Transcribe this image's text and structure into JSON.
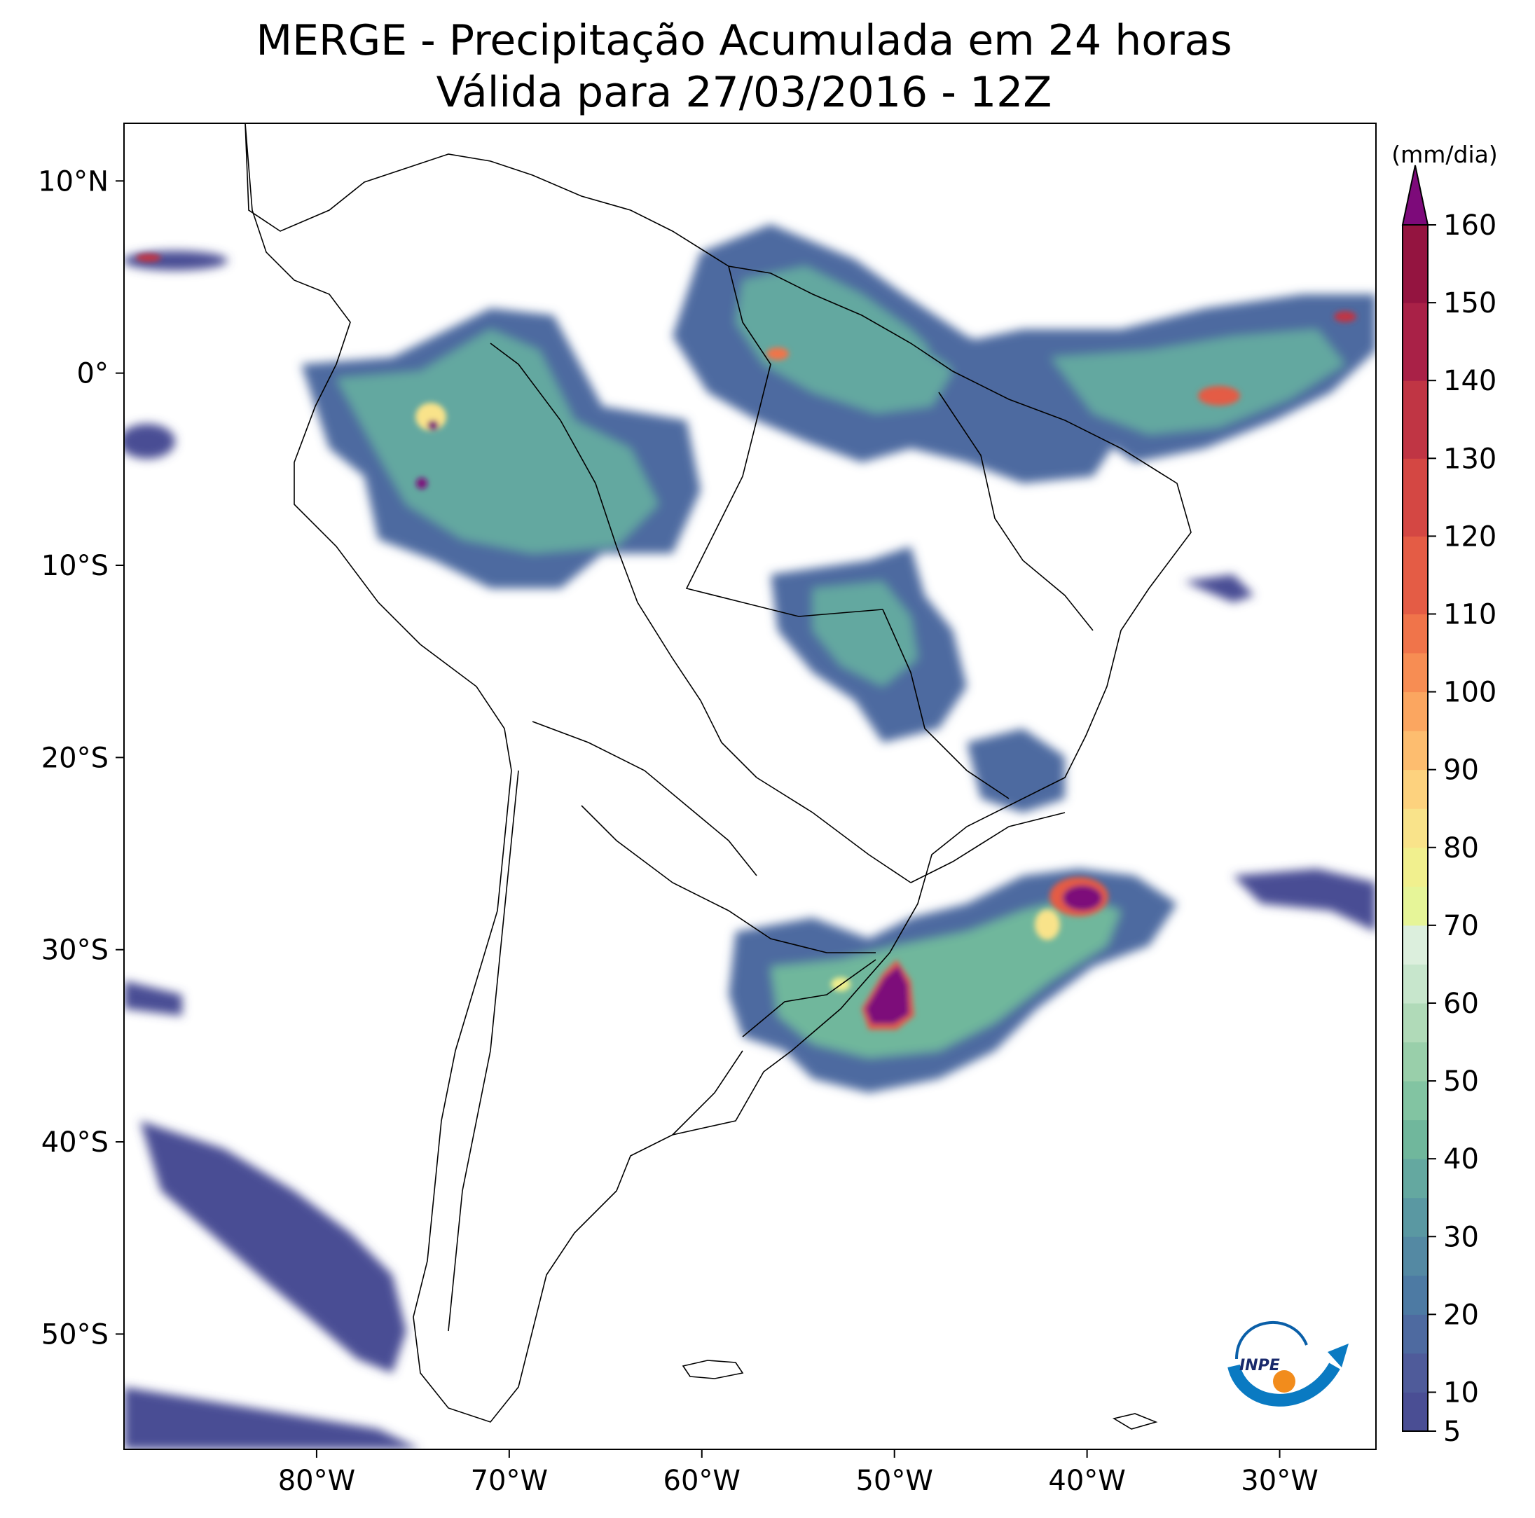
{
  "title": {
    "line1": "MERGE - Precipitação Acumulada em 24 horas",
    "line2": "Válida para 27/03/2016 - 12Z"
  },
  "map": {
    "lon_range": [
      -90,
      -25
    ],
    "lat_range": [
      -56,
      13
    ],
    "lon_ticks": [
      {
        "value": -80,
        "label": "80°W"
      },
      {
        "value": -70,
        "label": "70°W"
      },
      {
        "value": -60,
        "label": "60°W"
      },
      {
        "value": -50,
        "label": "50°W"
      },
      {
        "value": -40,
        "label": "40°W"
      },
      {
        "value": -30,
        "label": "30°W"
      }
    ],
    "lat_ticks": [
      {
        "value": 10,
        "label": "10°N"
      },
      {
        "value": 0,
        "label": "0°"
      },
      {
        "value": -10,
        "label": "10°S"
      },
      {
        "value": -20,
        "label": "20°S"
      },
      {
        "value": -30,
        "label": "30°S"
      },
      {
        "value": -40,
        "label": "40°S"
      },
      {
        "value": -50,
        "label": "50°S"
      }
    ]
  },
  "colorbar": {
    "unit": "(mm/dia)",
    "levels": [
      5,
      160
    ],
    "tick_labels": [
      "5",
      "10",
      "20",
      "30",
      "40",
      "50",
      "60",
      "70",
      "80",
      "90",
      "100",
      "110",
      "120",
      "130",
      "140",
      "150",
      "160"
    ],
    "tick_values": [
      5,
      10,
      20,
      30,
      40,
      50,
      60,
      70,
      80,
      90,
      100,
      110,
      120,
      130,
      140,
      150,
      160
    ],
    "colors": [
      "#4a4e94",
      "#4f5b9a",
      "#4e6aa0",
      "#4d7aa3",
      "#5489a3",
      "#5a98a2",
      "#64a8a0",
      "#70b79c",
      "#82c4a2",
      "#99cfaa",
      "#b0dab8",
      "#c7e6cc",
      "#dcefdd",
      "#e6f598",
      "#f1f08e",
      "#f9e38a",
      "#fdd27e",
      "#fdbd6f",
      "#fba660",
      "#f78d53",
      "#f0744a",
      "#e45c45",
      "#d44743",
      "#c03544",
      "#a92147",
      "#941440"
    ],
    "extend_color": "#7d0a7a"
  },
  "logo": {
    "text": "INPE"
  }
}
